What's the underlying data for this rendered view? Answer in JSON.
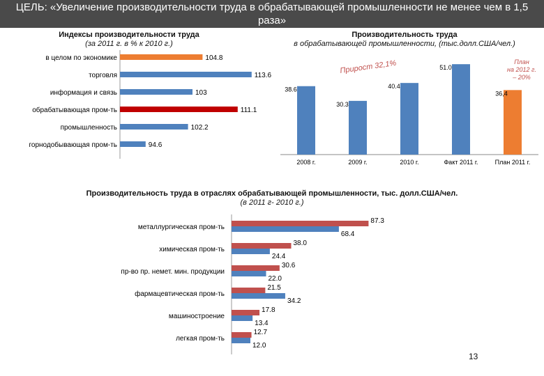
{
  "header": {
    "title": "ЦЕЛЬ: «Увеличение производительности труда в обрабатывающей промышленности не менее чем в 1,5 раза»"
  },
  "colors": {
    "orange": "#ED7D31",
    "red": "#C0504D",
    "blue": "#4F81BD",
    "header_bg": "#4a4a4a"
  },
  "chart_data": [
    {
      "type": "bar",
      "orientation": "horizontal",
      "title": "Индексы производительности труда",
      "subtitle": "(за 2011 г. в % к 2010 г.)",
      "categories": [
        "в целом по экономике",
        "торговля",
        "информация и связь",
        "обрабатывающая пром-ть",
        "промышленность",
        "горнодобывающая пром-ть"
      ],
      "values": [
        104.8,
        113.6,
        103,
        111.1,
        102.2,
        94.6
      ],
      "value_labels": [
        "104.8",
        "113.6",
        "103",
        "111.1",
        "102.2",
        "94.6"
      ],
      "bar_colors": [
        "#ED7D31",
        "#4F81BD",
        "#4F81BD",
        "#C00000",
        "#4F81BD",
        "#4F81BD"
      ],
      "xlim": [
        90,
        115
      ]
    },
    {
      "type": "bar",
      "title": "Производительность труда",
      "subtitle": "в обрабатывающей промышленности, (тыс.долл.США/чел.)",
      "categories": [
        "2008 г.",
        "2009 г.",
        "2010 г.",
        "Факт 2011 г.",
        "План 2011 г."
      ],
      "values": [
        38.6,
        30.3,
        40.4,
        51.0,
        36.4
      ],
      "value_labels": [
        "38.6",
        "30.3",
        "40.4",
        "51.0",
        "36,4"
      ],
      "bar_colors": [
        "#4F81BD",
        "#4F81BD",
        "#4F81BD",
        "#4F81BD",
        "#ED7D31"
      ],
      "ylim": [
        0,
        55
      ],
      "annotations": {
        "growth": "Прирост 32,1%",
        "plan_line1": "План",
        "plan_line2": "на 2012 г.",
        "plan_line3": "– 20%"
      }
    },
    {
      "type": "bar",
      "orientation": "horizontal",
      "title": "Производительность труда в отраслях обрабатывающей промышленности, тыс. долл.США/чел.",
      "subtitle": "(в 2011 г- 2010 г.)",
      "categories": [
        "металлургическая пром-ть",
        "химическая пром-ть",
        "пр-во пр. немет. мин. продукции",
        "фармацевтическая пром-ть",
        "машиностроение",
        "легкая пром-ть"
      ],
      "series": [
        {
          "name": "2011",
          "color": "#C0504D",
          "values": [
            87.3,
            38.0,
            30.6,
            21.5,
            17.8,
            12.7
          ],
          "labels": [
            "87.3",
            "38.0",
            "30.6",
            "21.5",
            "17.8",
            "12.7"
          ]
        },
        {
          "name": "2010",
          "color": "#4F81BD",
          "values": [
            68.4,
            24.4,
            22.0,
            34.2,
            13.4,
            12.0
          ],
          "labels": [
            "68.4",
            "24.4",
            "22.0",
            "34.2",
            "13.4",
            "12.0"
          ]
        }
      ],
      "xlim": [
        0,
        100
      ]
    }
  ],
  "page_number": "13"
}
